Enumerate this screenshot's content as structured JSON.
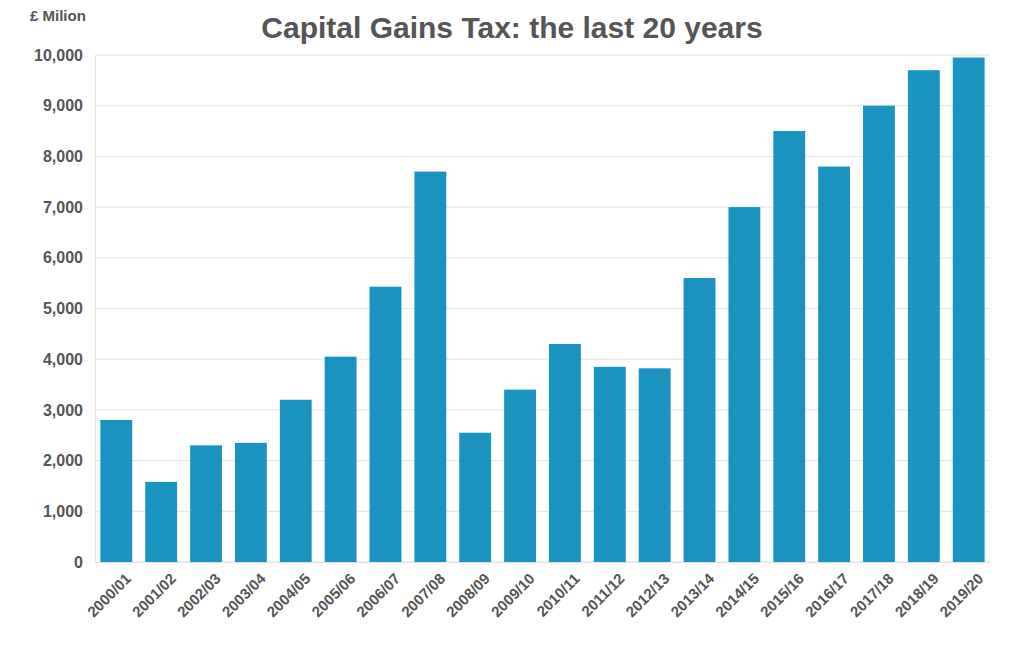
{
  "chart_data": {
    "type": "bar",
    "title": "Capital Gains Tax: the last 20 years",
    "y_label": "£ Milion",
    "categories": [
      "2000/01",
      "2001/02",
      "2002/03",
      "2003/04",
      "2004/05",
      "2005/06",
      "2006/07",
      "2007/08",
      "2008/09",
      "2009/10",
      "2010/11",
      "2011/12",
      "2012/13",
      "2013/14",
      "2014/15",
      "2015/16",
      "2016/17",
      "2017/18",
      "2018/19",
      "2019/20"
    ],
    "values": [
      2800,
      1580,
      2300,
      2350,
      3200,
      4050,
      5430,
      7700,
      2550,
      3400,
      4300,
      3850,
      3820,
      5600,
      7000,
      8500,
      7800,
      9000,
      9700,
      9950
    ],
    "color": "#1a93c0",
    "ylim": [
      0,
      10000
    ],
    "yticks": [
      0,
      {
        "value": 1000,
        "label": "1,000"
      },
      {
        "value": 2000,
        "label": "2,000"
      },
      {
        "value": 3000,
        "label": "3,000"
      },
      {
        "value": 4000,
        "label": "4,000"
      },
      {
        "value": 5000,
        "label": "5,000"
      },
      {
        "value": 6000,
        "label": "6,000"
      },
      {
        "value": 7000,
        "label": "7,000"
      },
      {
        "value": 8000,
        "label": "8,000"
      },
      {
        "value": 9000,
        "label": "9,000"
      },
      {
        "value": 10000,
        "label": "10,000"
      }
    ],
    "grid": true
  }
}
